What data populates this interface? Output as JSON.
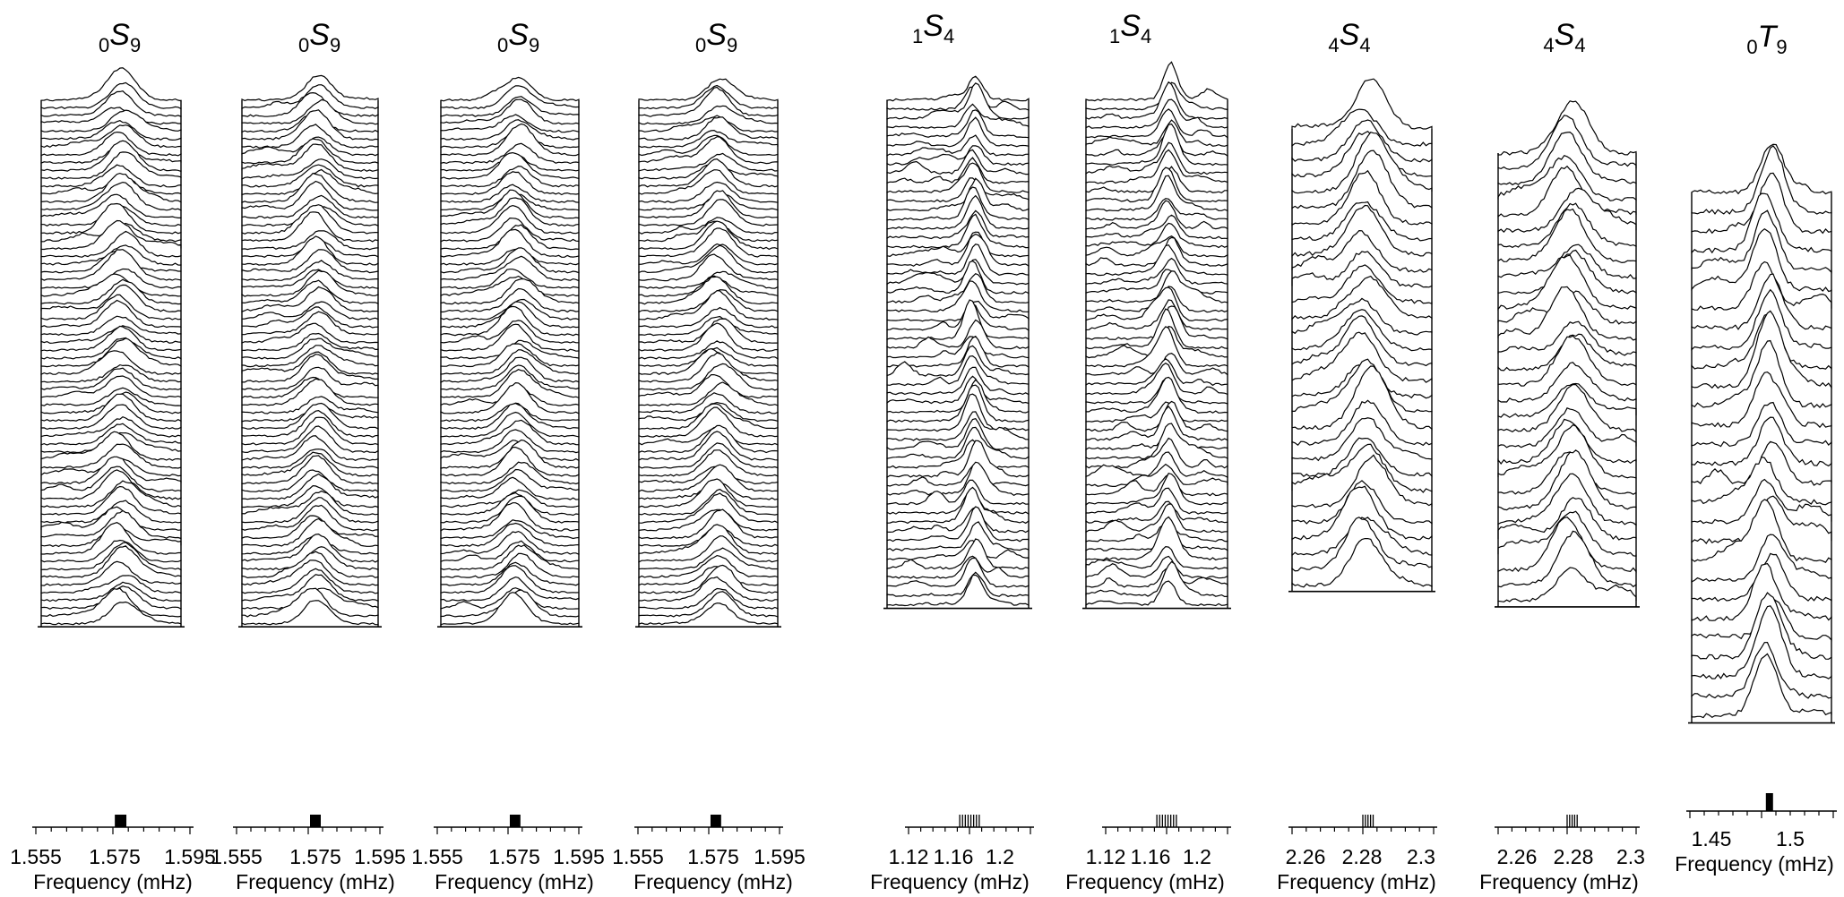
{
  "chart_data": [
    {
      "type": "line",
      "title": {
        "pre": "0",
        "letter": "S",
        "post": "9"
      },
      "xlabel": "Frequency (mHz)",
      "xlim": [
        1.555,
        1.595
      ],
      "ticks": [
        "1.555",
        "1.575",
        "1.595"
      ],
      "center": 1.577,
      "width": 0.0035,
      "traces": 68,
      "bar": {
        "kind": "solid",
        "from": 1.5755,
        "to": 1.5785
      }
    },
    {
      "type": "line",
      "title": {
        "pre": "0",
        "letter": "S",
        "post": "9"
      },
      "xlabel": "Frequency (mHz)",
      "xlim": [
        1.555,
        1.595
      ],
      "ticks": [
        "1.555",
        "1.575",
        "1.595"
      ],
      "center": 1.5775,
      "width": 0.0035,
      "traces": 68,
      "bar": {
        "kind": "solid",
        "from": 1.5755,
        "to": 1.5785
      }
    },
    {
      "type": "line",
      "title": {
        "pre": "0",
        "letter": "S",
        "post": "9"
      },
      "xlabel": "Frequency (mHz)",
      "xlim": [
        1.555,
        1.595
      ],
      "ticks": [
        "1.555",
        "1.575",
        "1.595"
      ],
      "center": 1.5775,
      "width": 0.0035,
      "traces": 68,
      "bar": {
        "kind": "solid",
        "from": 1.5755,
        "to": 1.5785
      }
    },
    {
      "type": "line",
      "title": {
        "pre": "0",
        "letter": "S",
        "post": "9"
      },
      "xlabel": "Frequency (mHz)",
      "xlim": [
        1.555,
        1.595
      ],
      "ticks": [
        "1.555",
        "1.575",
        "1.595"
      ],
      "center": 1.5775,
      "width": 0.0035,
      "traces": 68,
      "bar": {
        "kind": "solid",
        "from": 1.5755,
        "to": 1.5785
      }
    },
    {
      "type": "line",
      "title": {
        "pre": "1",
        "letter": "S",
        "post": "4"
      },
      "xlabel": "Frequency (mHz)",
      "xlim": [
        1.12,
        1.22
      ],
      "ticks": [
        "1.12",
        "1.16",
        "1.2"
      ],
      "center": 1.174,
      "width": 0.006,
      "traces": 56,
      "bar": {
        "kind": "lines",
        "from": 1.162,
        "to": 1.178
      }
    },
    {
      "type": "line",
      "title": {
        "pre": "1",
        "letter": "S",
        "post": "4"
      },
      "xlabel": "Frequency (mHz)",
      "xlim": [
        1.12,
        1.22
      ],
      "ticks": [
        "1.12",
        "1.16",
        "1.2"
      ],
      "center": 1.172,
      "width": 0.006,
      "traces": 56,
      "bar": {
        "kind": "lines",
        "from": 1.162,
        "to": 1.178
      }
    },
    {
      "type": "line",
      "title": {
        "pre": "4",
        "letter": "S",
        "post": "4"
      },
      "xlabel": "Frequency (mHz)",
      "xlim": [
        2.25,
        2.305
      ],
      "ticks": [
        "2.26",
        "2.28",
        "2.3"
      ],
      "center": 2.279,
      "width": 0.006,
      "traces": 30,
      "bar": {
        "kind": "lines",
        "from": 2.2775,
        "to": 2.2815
      }
    },
    {
      "type": "line",
      "title": {
        "pre": "4",
        "letter": "S",
        "post": "4"
      },
      "xlabel": "Frequency (mHz)",
      "xlim": [
        2.25,
        2.305
      ],
      "ticks": [
        "2.26",
        "2.28",
        "2.3"
      ],
      "center": 2.279,
      "width": 0.006,
      "traces": 30,
      "bar": {
        "kind": "lines",
        "from": 2.2775,
        "to": 2.2815
      }
    },
    {
      "type": "line",
      "title": {
        "pre": "0",
        "letter": "T",
        "post": "9"
      },
      "xlabel": "Frequency (mHz)",
      "xlim": [
        1.43,
        1.53
      ],
      "ticks": [
        "1.45",
        "1.5"
      ],
      "center": 1.485,
      "width": 0.008,
      "traces": 28,
      "bar": {
        "kind": "solid",
        "from": 1.483,
        "to": 1.488
      }
    }
  ]
}
